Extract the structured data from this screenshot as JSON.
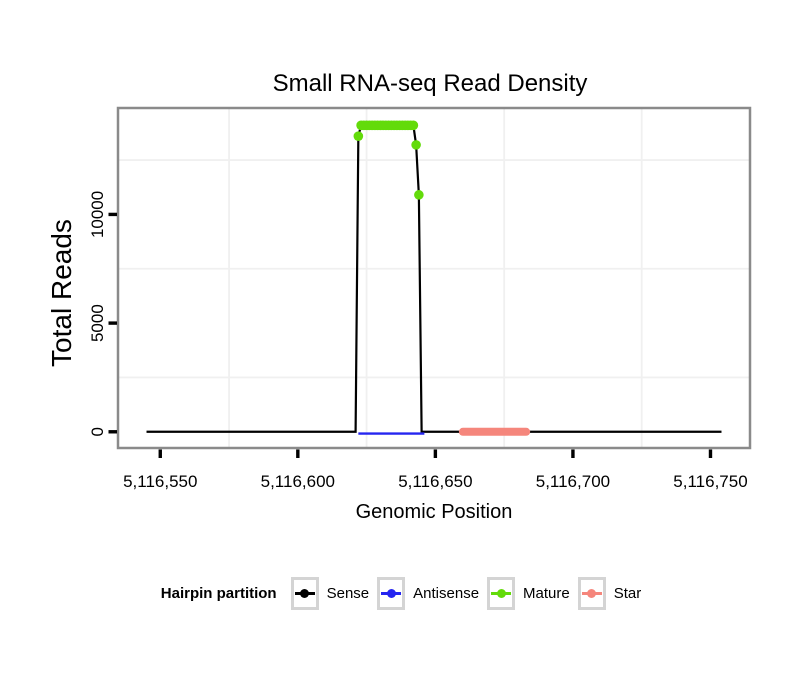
{
  "chart_data": {
    "type": "line",
    "title": "Small RNA-seq Read Density",
    "xlabel": "Genomic Position",
    "ylabel": "Total Reads",
    "xlim": [
      5116535,
      5116764
    ],
    "ylim": [
      -700,
      14850
    ],
    "x_ticks": [
      {
        "v": 5116550,
        "label": "5,116,550"
      },
      {
        "v": 5116600,
        "label": "5,116,600"
      },
      {
        "v": 5116650,
        "label": "5,116,650"
      },
      {
        "v": 5116700,
        "label": "5,116,700"
      },
      {
        "v": 5116750,
        "label": "5,116,750"
      }
    ],
    "y_ticks": [
      {
        "v": 0,
        "label": "0"
      },
      {
        "v": 5000,
        "label": "5000"
      },
      {
        "v": 10000,
        "label": "10000"
      }
    ],
    "x_minor": [
      5116575,
      5116625,
      5116675,
      5116725
    ],
    "y_minor": [
      2500,
      7500,
      12500
    ],
    "grid": {
      "major_color": "#FFFFFF",
      "minor_color": "#F0F0F0"
    },
    "panel": {
      "background": "#FFFFFF",
      "border_color": "#8A8A8A"
    },
    "series": [
      {
        "name": "Sense",
        "type": "line",
        "color": "#000000",
        "width": 2.2,
        "points": [
          [
            5116545,
            0
          ],
          [
            5116621,
            0
          ],
          [
            5116622,
            13600
          ],
          [
            5116623,
            14100
          ],
          [
            5116642,
            14100
          ],
          [
            5116643,
            13200
          ],
          [
            5116644,
            10900
          ],
          [
            5116645,
            0
          ],
          [
            5116754,
            0
          ]
        ]
      },
      {
        "name": "Antisense",
        "type": "line",
        "color": "#2525F0",
        "width": 2.4,
        "dy": 1.8,
        "points": [
          [
            5116622,
            0
          ],
          [
            5116646,
            0
          ]
        ]
      },
      {
        "name": "Star",
        "type": "line",
        "color": "#F5867C",
        "width": 8,
        "linecap": "round",
        "points": [
          [
            5116660,
            0
          ],
          [
            5116683,
            0
          ]
        ]
      },
      {
        "name": "Mature",
        "type": "points",
        "color": "#63DB0A",
        "radius": 4.8,
        "points": [
          [
            5116622,
            13600
          ],
          [
            5116623,
            14100
          ],
          [
            5116624,
            14100
          ],
          [
            5116625,
            14100
          ],
          [
            5116626,
            14100
          ],
          [
            5116627,
            14100
          ],
          [
            5116628,
            14100
          ],
          [
            5116629,
            14100
          ],
          [
            5116630,
            14100
          ],
          [
            5116631,
            14100
          ],
          [
            5116632,
            14100
          ],
          [
            5116633,
            14100
          ],
          [
            5116634,
            14100
          ],
          [
            5116635,
            14100
          ],
          [
            5116636,
            14100
          ],
          [
            5116637,
            14100
          ],
          [
            5116638,
            14100
          ],
          [
            5116639,
            14100
          ],
          [
            5116640,
            14100
          ],
          [
            5116641,
            14100
          ],
          [
            5116642,
            14100
          ],
          [
            5116643,
            13200
          ],
          [
            5116644,
            10900
          ]
        ]
      }
    ]
  },
  "legend": {
    "title": "Hairpin partition",
    "key_box_border": "#D4D4D4",
    "entries": [
      {
        "label": "Sense",
        "color": "#000000"
      },
      {
        "label": "Antisense",
        "color": "#2525F0"
      },
      {
        "label": "Mature",
        "color": "#63DB0A"
      },
      {
        "label": "Star",
        "color": "#F5867C"
      }
    ]
  }
}
